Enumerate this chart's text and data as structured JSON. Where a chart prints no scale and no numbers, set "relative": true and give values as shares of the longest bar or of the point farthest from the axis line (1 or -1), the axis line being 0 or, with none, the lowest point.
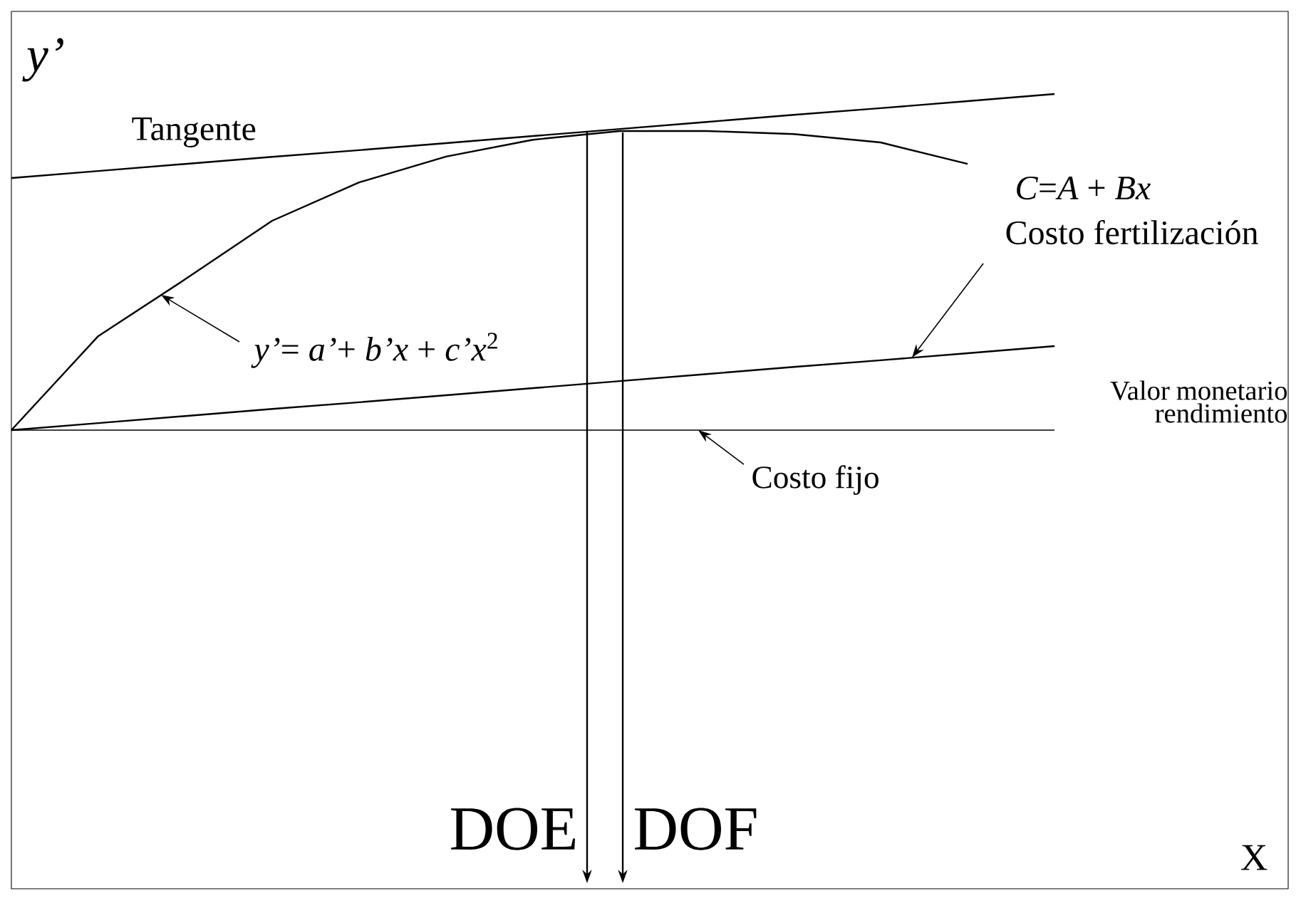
{
  "chart_data": {
    "type": "line",
    "relative": true,
    "ylabel": "y’",
    "line_style": "solid",
    "marker": "none",
    "categories": [
      null,
      null,
      null,
      null,
      null,
      null,
      null,
      null,
      null,
      null,
      null,
      null,
      null
    ],
    "series": [
      {
        "values": [
          0,
          0.28,
          0.449,
          0.623,
          0.737,
          0.814,
          0.864,
          0.89,
          0.89,
          0.881,
          0.856,
          0.792,
          null
        ],
        "color": "#000000"
      },
      {
        "name": "Tangente",
        "values": [
          0.75,
          0.771,
          0.792,
          0.813,
          0.833,
          0.854,
          0.875,
          0.896,
          0.917,
          0.938,
          0.958,
          0.979,
          1
        ],
        "color": "#000000"
      },
      {
        "values": [
          0,
          0.021,
          0.042,
          0.063,
          0.083,
          0.104,
          0.125,
          0.146,
          0.167,
          0.188,
          0.208,
          0.229,
          0.25
        ],
        "color": "#000000"
      }
    ],
    "ref_lines": [
      {
        "axis": "y",
        "value": 0,
        "label": "Costo fijo"
      }
    ],
    "annotations": [
      "*y’*= *a’*+ *b’x* + *c’x*$^{2}$",
      "*C*=*A* + *Bx*",
      "Costo fertilización",
      "DOE",
      "DOF",
      "Valor monetario rendimiento",
      "X"
    ]
  }
}
